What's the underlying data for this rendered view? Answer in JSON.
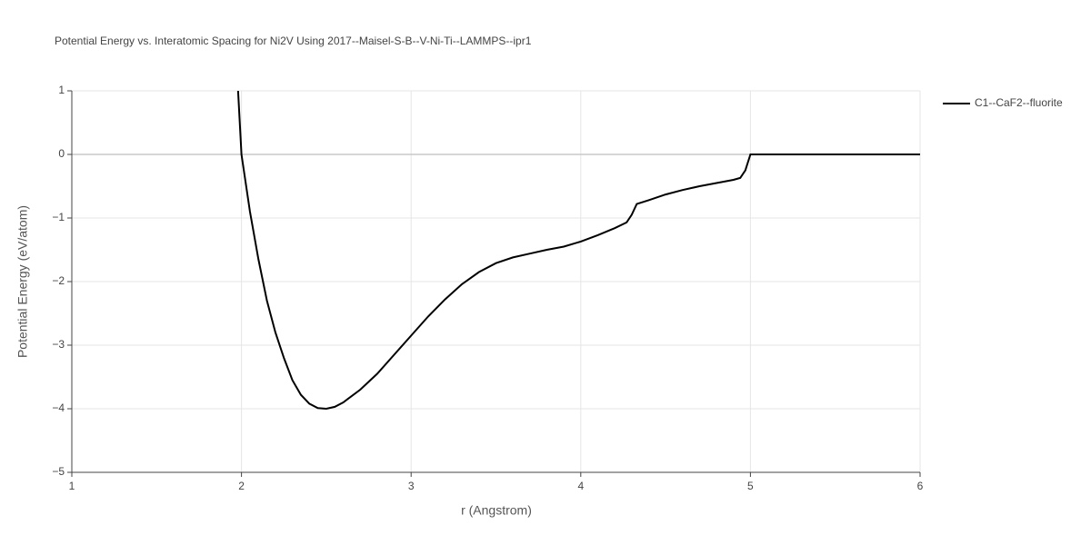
{
  "chart_data": {
    "type": "line",
    "title": "Potential Energy vs. Interatomic Spacing for Ni2V Using 2017--Maisel-S-B--V-Ni-Ti--LAMMPS--ipr1",
    "x_label": "r (Angstrom)",
    "y_label": "Potential Energy (eV/atom)",
    "xlim": [
      1,
      6
    ],
    "ylim": [
      -5,
      1
    ],
    "xticks": [
      1,
      2,
      3,
      4,
      5,
      6
    ],
    "yticks": [
      1,
      0,
      {
        "value": -1,
        "label": "−1"
      },
      {
        "value": -2,
        "label": "−2"
      },
      {
        "value": -3,
        "label": "−3"
      },
      {
        "value": -4,
        "label": "−4"
      },
      {
        "value": -5,
        "label": "−5"
      }
    ],
    "grid": true,
    "legend": "right",
    "x": [
      1.98,
      2.0,
      2.05,
      2.1,
      2.15,
      2.2,
      2.25,
      2.3,
      2.35,
      2.4,
      2.45,
      2.5,
      2.55,
      2.6,
      2.7,
      2.8,
      2.9,
      3.0,
      3.1,
      3.2,
      3.3,
      3.4,
      3.5,
      3.6,
      3.7,
      3.8,
      3.9,
      4.0,
      4.1,
      4.2,
      4.27,
      4.3,
      4.33,
      4.4,
      4.5,
      4.6,
      4.7,
      4.8,
      4.9,
      4.94,
      4.97,
      5.0,
      6.0
    ],
    "series": [
      {
        "name": "C1--CaF2--fluorite",
        "color": "#000000",
        "values": [
          1,
          0,
          -0.9,
          -1.65,
          -2.3,
          -2.8,
          -3.2,
          -3.55,
          -3.78,
          -3.92,
          -3.99,
          -4.0,
          -3.97,
          -3.9,
          -3.7,
          -3.45,
          -3.15,
          -2.85,
          -2.55,
          -2.28,
          -2.04,
          -1.85,
          -1.71,
          -1.62,
          -1.56,
          -1.5,
          -1.45,
          -1.37,
          -1.27,
          -1.16,
          -1.07,
          -0.95,
          -0.78,
          -0.72,
          -0.63,
          -0.56,
          -0.5,
          -0.45,
          -0.4,
          -0.37,
          -0.25,
          0,
          0
        ]
      }
    ]
  }
}
